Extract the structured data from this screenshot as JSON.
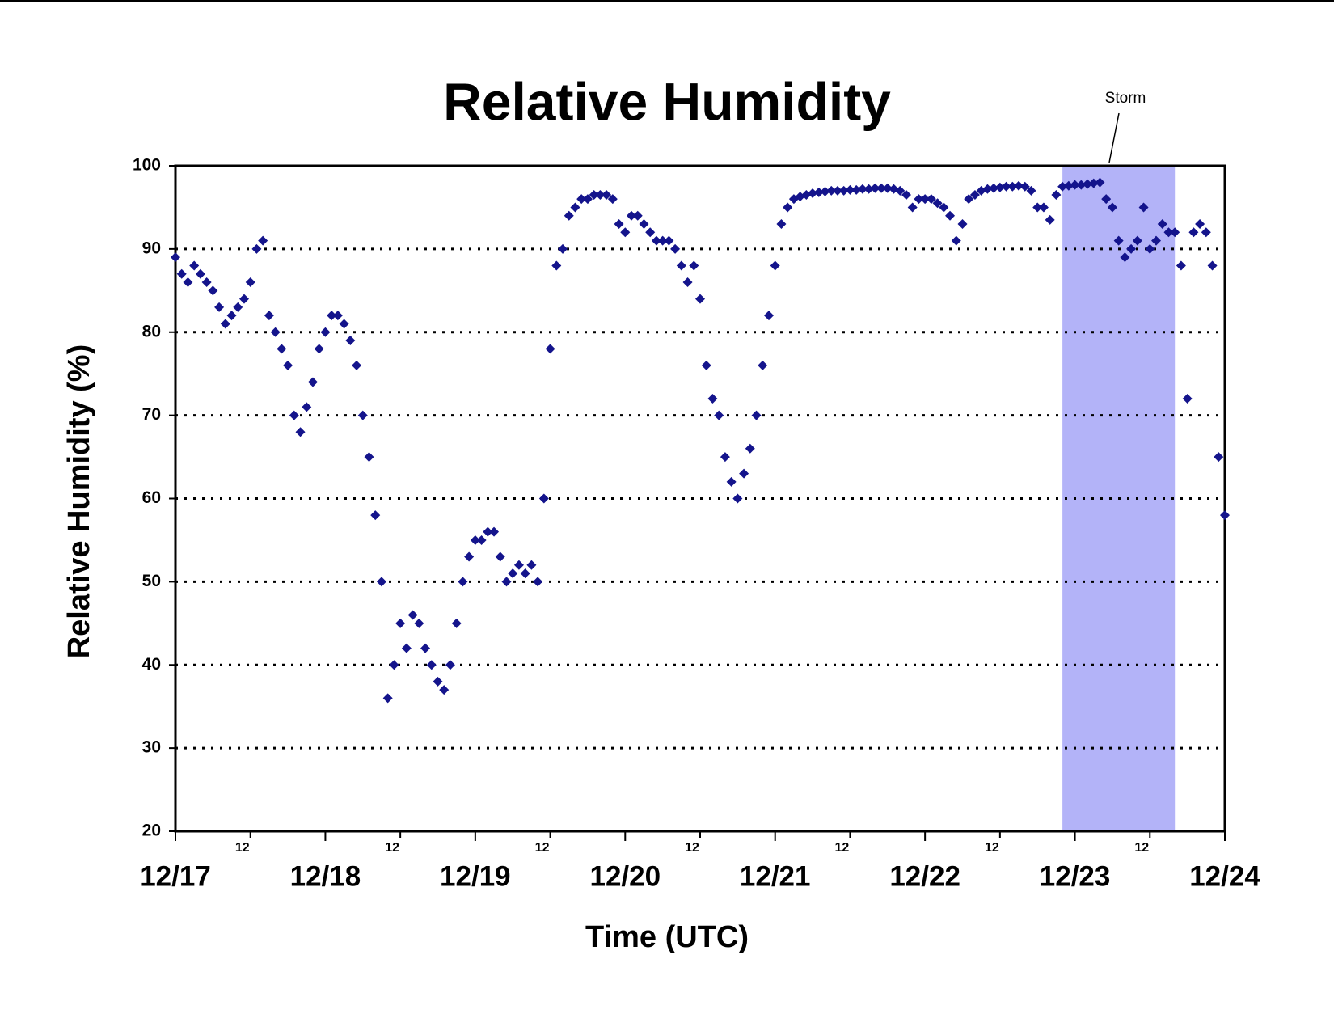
{
  "chart_data": {
    "type": "scatter",
    "title": "Relative Humidity",
    "xlabel": "Time (UTC)",
    "ylabel": "Relative Humidity (%)",
    "x": [
      0,
      1,
      2,
      3,
      4,
      5,
      6,
      7,
      8,
      9,
      10,
      11,
      12,
      13,
      14,
      15,
      16,
      17,
      18,
      19,
      20,
      21,
      22,
      23,
      24,
      25,
      26,
      27,
      28,
      29,
      30,
      31,
      32,
      33,
      34,
      35,
      36,
      37,
      38,
      39,
      40,
      41,
      42,
      43,
      44,
      45,
      46,
      47,
      48,
      49,
      50,
      51,
      52,
      53,
      54,
      55,
      56,
      57,
      58,
      59,
      60,
      61,
      62,
      63,
      64,
      65,
      66,
      67,
      68,
      69,
      70,
      71,
      72,
      73,
      74,
      75,
      76,
      77,
      78,
      79,
      80,
      81,
      82,
      83,
      84,
      85,
      86,
      87,
      88,
      89,
      90,
      91,
      92,
      93,
      94,
      95,
      96,
      97,
      98,
      99,
      100,
      101,
      102,
      103,
      104,
      105,
      106,
      107,
      108,
      109,
      110,
      111,
      112,
      113,
      114,
      115,
      116,
      117,
      118,
      119,
      120,
      121,
      122,
      123,
      124,
      125,
      126,
      127,
      128,
      129,
      130,
      131,
      132,
      133,
      134,
      135,
      136,
      137,
      138,
      139,
      140,
      141,
      142,
      143,
      144,
      145,
      146,
      147,
      148,
      149,
      150,
      151,
      152,
      153,
      154,
      155,
      156,
      157,
      158,
      159,
      160,
      161,
      162,
      163,
      164,
      165,
      166,
      167,
      168
    ],
    "series": [
      {
        "name": "Relative Humidity",
        "color": "#14148c",
        "values": [
          89,
          87,
          86,
          88,
          87,
          86,
          85,
          83,
          81,
          82,
          83,
          84,
          86,
          90,
          91,
          82,
          80,
          78,
          76,
          70,
          68,
          71,
          74,
          78,
          80,
          82,
          82,
          81,
          79,
          76,
          70,
          65,
          58,
          50,
          36,
          40,
          45,
          42,
          46,
          45,
          42,
          40,
          38,
          37,
          40,
          45,
          50,
          53,
          55,
          55,
          56,
          56,
          53,
          50,
          51,
          52,
          51,
          52,
          50,
          60,
          78,
          88,
          90,
          94,
          95,
          96,
          96,
          96.5,
          96.5,
          96.5,
          96,
          93,
          92,
          94,
          94,
          93,
          92,
          91,
          91,
          91,
          90,
          88,
          86,
          88,
          84,
          76,
          72,
          70,
          65,
          62,
          60,
          63,
          66,
          70,
          76,
          82,
          88,
          93,
          95,
          96,
          96.3,
          96.5,
          96.7,
          96.8,
          96.9,
          97,
          97,
          97,
          97.1,
          97.1,
          97.2,
          97.2,
          97.3,
          97.3,
          97.3,
          97.2,
          97,
          96.5,
          95,
          96,
          96,
          96,
          95.5,
          95,
          94,
          91,
          93,
          96,
          96.5,
          97,
          97.2,
          97.3,
          97.4,
          97.5,
          97.5,
          97.6,
          97.5,
          97,
          95,
          95,
          93.5,
          96.5,
          97.5,
          97.6,
          97.7,
          97.7,
          97.8,
          97.9,
          98,
          96,
          95,
          91,
          89,
          90,
          91,
          95,
          90,
          91,
          93,
          92,
          92,
          88,
          72,
          92,
          93,
          92,
          88,
          65,
          58
        ]
      }
    ],
    "xlim": [
      0,
      168
    ],
    "xticks": [
      {
        "value": 0,
        "label": "12/17"
      },
      {
        "value": 24,
        "label": "12/18"
      },
      {
        "value": 48,
        "label": "12/19"
      },
      {
        "value": 72,
        "label": "12/20"
      },
      {
        "value": 96,
        "label": "12/21"
      },
      {
        "value": 120,
        "label": "12/22"
      },
      {
        "value": 144,
        "label": "12/23"
      },
      {
        "value": 168,
        "label": "12/24"
      }
    ],
    "xminor_ticks": [
      12,
      {
        "value": 36,
        "label": "12"
      },
      {
        "value": 60,
        "label": "12"
      },
      {
        "value": 84,
        "label": "12"
      },
      {
        "value": 108,
        "label": "12"
      },
      {
        "value": 132,
        "label": "12"
      },
      {
        "value": 156,
        "label": "12"
      }
    ],
    "ylim": [
      20,
      100
    ],
    "yticks": [
      20,
      30,
      40,
      50,
      60,
      70,
      80,
      90,
      100
    ],
    "grid": true,
    "shaded_region": {
      "label": "Storm",
      "xlim": [
        142,
        160
      ],
      "color": "#b3b3f8"
    }
  }
}
